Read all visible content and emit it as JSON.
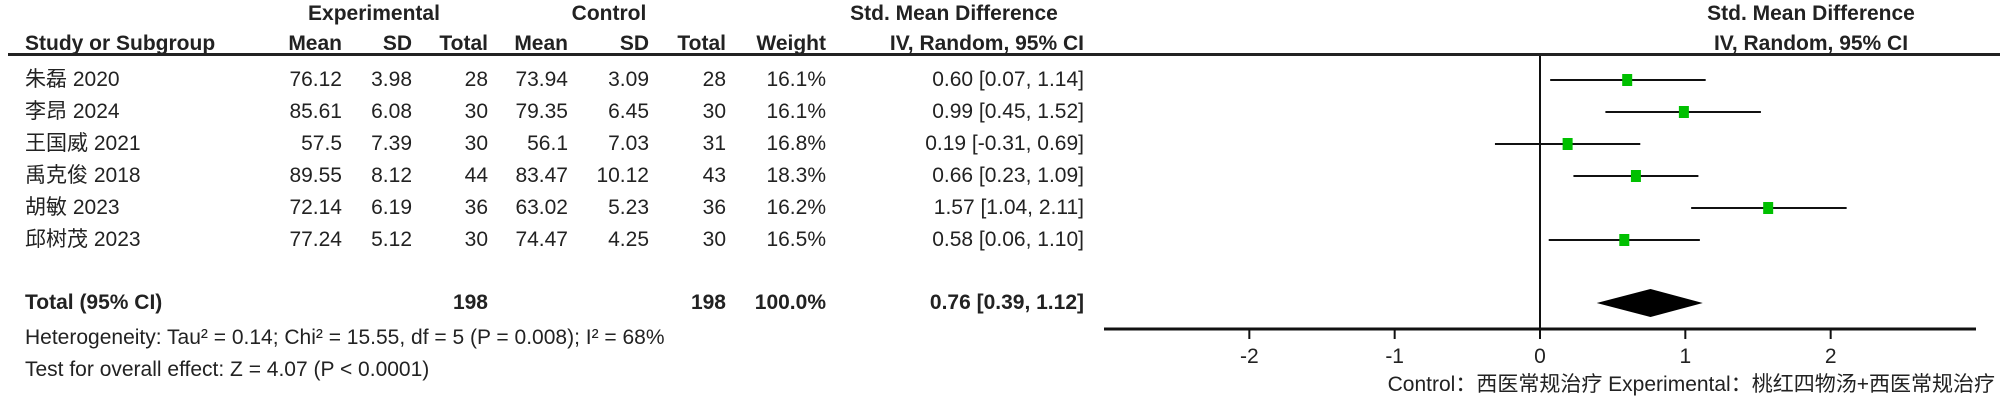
{
  "chart_data": {
    "type": "forest",
    "headers": {
      "group_experimental": "Experimental",
      "group_control": "Control",
      "effect_title": "Std. Mean Difference",
      "effect_method": "IV, Random, 95% CI",
      "study": "Study or Subgroup",
      "mean": "Mean",
      "sd": "SD",
      "total": "Total",
      "weight": "Weight"
    },
    "studies": [
      {
        "name": "朱磊 2020",
        "exp_mean": "76.12",
        "exp_sd": "3.98",
        "exp_total": "28",
        "ctl_mean": "73.94",
        "ctl_sd": "3.09",
        "ctl_total": "28",
        "weight": "16.1%",
        "ci_text": "0.60 [0.07, 1.14]",
        "est": 0.6,
        "lo": 0.07,
        "hi": 1.14
      },
      {
        "name": "李昂 2024",
        "exp_mean": "85.61",
        "exp_sd": "6.08",
        "exp_total": "30",
        "ctl_mean": "79.35",
        "ctl_sd": "6.45",
        "ctl_total": "30",
        "weight": "16.1%",
        "ci_text": "0.99 [0.45, 1.52]",
        "est": 0.99,
        "lo": 0.45,
        "hi": 1.52
      },
      {
        "name": "王国威 2021",
        "exp_mean": "57.5",
        "exp_sd": "7.39",
        "exp_total": "30",
        "ctl_mean": "56.1",
        "ctl_sd": "7.03",
        "ctl_total": "31",
        "weight": "16.8%",
        "ci_text": "0.19 [-0.31, 0.69]",
        "est": 0.19,
        "lo": -0.31,
        "hi": 0.69
      },
      {
        "name": "禹克俊 2018",
        "exp_mean": "89.55",
        "exp_sd": "8.12",
        "exp_total": "44",
        "ctl_mean": "83.47",
        "ctl_sd": "10.12",
        "ctl_total": "43",
        "weight": "18.3%",
        "ci_text": "0.66 [0.23, 1.09]",
        "est": 0.66,
        "lo": 0.23,
        "hi": 1.09
      },
      {
        "name": "胡敏 2023",
        "exp_mean": "72.14",
        "exp_sd": "6.19",
        "exp_total": "36",
        "ctl_mean": "63.02",
        "ctl_sd": "5.23",
        "ctl_total": "36",
        "weight": "16.2%",
        "ci_text": "1.57 [1.04, 2.11]",
        "est": 1.57,
        "lo": 1.04,
        "hi": 2.11
      },
      {
        "name": "邱树茂 2023",
        "exp_mean": "77.24",
        "exp_sd": "5.12",
        "exp_total": "30",
        "ctl_mean": "74.47",
        "ctl_sd": "4.25",
        "ctl_total": "30",
        "weight": "16.5%",
        "ci_text": "0.58 [0.06, 1.10]",
        "est": 0.58,
        "lo": 0.06,
        "hi": 1.1
      }
    ],
    "total": {
      "label": "Total (95% CI)",
      "exp_total": "198",
      "ctl_total": "198",
      "weight": "100.0%",
      "ci_text": "0.76 [0.39, 1.12]",
      "est": 0.76,
      "lo": 0.39,
      "hi": 1.12
    },
    "heterogeneity": "Heterogeneity: Tau² = 0.14; Chi² = 15.55, df = 5 (P = 0.008); I² = 68%",
    "overall_effect": "Test for overall effect: Z = 4.07 (P < 0.0001)",
    "xlim": [
      -3,
      3
    ],
    "x_ticks": [
      "-2",
      "-1",
      "0",
      "1",
      "2"
    ],
    "x_tick_values": [
      -2,
      -1,
      0,
      1,
      2
    ],
    "footer": "Control：西医常规治疗   Experimental：桃红四物汤+西医常规治疗",
    "colors": {
      "marker": "#00c000",
      "line": "#111111",
      "diamond": "#000000"
    }
  }
}
